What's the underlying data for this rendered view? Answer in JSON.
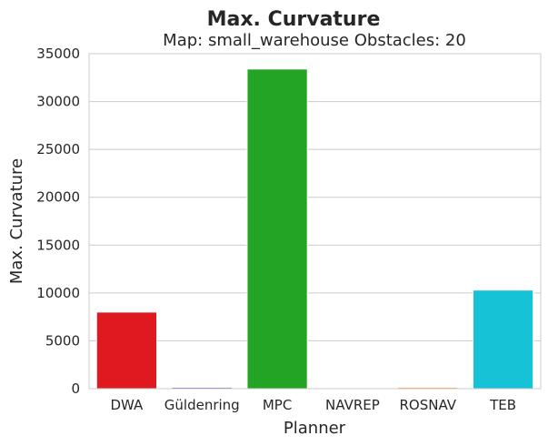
{
  "chart_data": {
    "type": "bar",
    "title": "Max. Curvature",
    "subtitle": "Map: small_warehouse Obstacles: 20",
    "xlabel": "Planner",
    "ylabel": "Max. Curvature",
    "categories": [
      "DWA",
      "Güldenring",
      "MPC",
      "NAVREP",
      "ROSNAV",
      "TEB"
    ],
    "values": [
      8000,
      150,
      33400,
      30,
      150,
      10300
    ],
    "colors": [
      "#e0181f",
      "#9467bd",
      "#24a424",
      "#8c564b",
      "#ff9f4a",
      "#16c2d6"
    ],
    "ylim": [
      0,
      35000
    ],
    "yticks": [
      0,
      5000,
      10000,
      15000,
      20000,
      25000,
      30000,
      35000
    ],
    "ytick_labels": [
      "0",
      "5000",
      "10000",
      "15000",
      "20000",
      "25000",
      "30000",
      "35000"
    ],
    "grid": true
  }
}
